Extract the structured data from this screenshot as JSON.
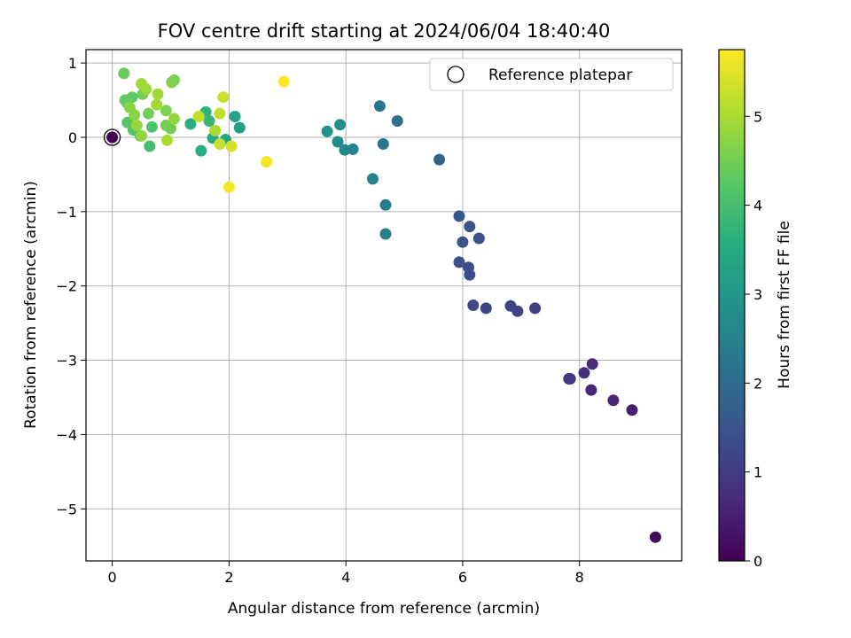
{
  "chart_data": {
    "type": "scatter",
    "title": "FOV centre drift starting at 2024/06/04 18:40:40",
    "xlabel": "Angular distance from reference (arcmin)",
    "ylabel": "Rotation from reference (arcmin)",
    "xlim": [
      -0.45,
      9.75
    ],
    "ylim": [
      -5.7,
      1.18
    ],
    "xticks": [
      0,
      2,
      4,
      6,
      8
    ],
    "yticks": [
      1,
      0,
      -1,
      -2,
      -3,
      -4,
      -5
    ],
    "grid": true,
    "legend": {
      "location": "upper right",
      "entries": [
        "Reference platepar"
      ]
    },
    "colorbar": {
      "label": "Hours from first FF file",
      "colormap": "viridis",
      "range": [
        0,
        5.75
      ],
      "ticks": [
        0,
        1,
        2,
        3,
        4,
        5
      ]
    },
    "reference": {
      "x": 0.0,
      "y": 0.0,
      "label": "Reference platepar"
    },
    "points": [
      {
        "x": 0.0,
        "y": 0.0,
        "h": 0.0
      },
      {
        "x": 9.3,
        "y": -5.38,
        "h": 0.15
      },
      {
        "x": 8.9,
        "y": -3.67,
        "h": 0.5
      },
      {
        "x": 8.58,
        "y": -3.54,
        "h": 0.6
      },
      {
        "x": 8.2,
        "y": -3.4,
        "h": 0.65
      },
      {
        "x": 8.22,
        "y": -3.05,
        "h": 0.7
      },
      {
        "x": 8.08,
        "y": -3.17,
        "h": 0.8
      },
      {
        "x": 7.82,
        "y": -3.25,
        "h": 0.85
      },
      {
        "x": 7.84,
        "y": -3.25,
        "h": 0.9
      },
      {
        "x": 7.24,
        "y": -2.3,
        "h": 1.1
      },
      {
        "x": 6.94,
        "y": -2.34,
        "h": 1.1
      },
      {
        "x": 6.82,
        "y": -2.27,
        "h": 1.15
      },
      {
        "x": 6.4,
        "y": -2.3,
        "h": 1.2
      },
      {
        "x": 6.18,
        "y": -2.26,
        "h": 1.25
      },
      {
        "x": 6.28,
        "y": -1.36,
        "h": 1.4
      },
      {
        "x": 6.12,
        "y": -1.85,
        "h": 1.35
      },
      {
        "x": 6.1,
        "y": -1.75,
        "h": 1.35
      },
      {
        "x": 5.94,
        "y": -1.68,
        "h": 1.4
      },
      {
        "x": 6.0,
        "y": -1.41,
        "h": 1.5
      },
      {
        "x": 6.12,
        "y": -1.2,
        "h": 1.5
      },
      {
        "x": 5.94,
        "y": -1.06,
        "h": 1.55
      },
      {
        "x": 5.6,
        "y": -0.3,
        "h": 1.8
      },
      {
        "x": 4.88,
        "y": 0.22,
        "h": 2.1
      },
      {
        "x": 4.58,
        "y": 0.42,
        "h": 2.2
      },
      {
        "x": 4.64,
        "y": -0.09,
        "h": 2.3
      },
      {
        "x": 4.68,
        "y": -0.91,
        "h": 2.4
      },
      {
        "x": 4.68,
        "y": -1.3,
        "h": 2.5
      },
      {
        "x": 4.46,
        "y": -0.56,
        "h": 2.55
      },
      {
        "x": 4.12,
        "y": -0.16,
        "h": 2.6
      },
      {
        "x": 3.98,
        "y": -0.17,
        "h": 2.7
      },
      {
        "x": 3.86,
        "y": -0.06,
        "h": 2.8
      },
      {
        "x": 3.9,
        "y": 0.17,
        "h": 2.8
      },
      {
        "x": 3.68,
        "y": 0.08,
        "h": 2.9
      },
      {
        "x": 2.18,
        "y": 0.13,
        "h": 3.2
      },
      {
        "x": 2.1,
        "y": 0.28,
        "h": 3.3
      },
      {
        "x": 1.94,
        "y": -0.03,
        "h": 3.4
      },
      {
        "x": 1.72,
        "y": -0.01,
        "h": 3.5
      },
      {
        "x": 1.52,
        "y": -0.18,
        "h": 3.6
      },
      {
        "x": 1.34,
        "y": 0.18,
        "h": 3.6
      },
      {
        "x": 1.6,
        "y": 0.34,
        "h": 3.7
      },
      {
        "x": 1.66,
        "y": 0.22,
        "h": 3.8
      },
      {
        "x": 0.64,
        "y": -0.12,
        "h": 4.0
      },
      {
        "x": 0.68,
        "y": 0.14,
        "h": 4.1
      },
      {
        "x": 0.48,
        "y": 0.02,
        "h": 4.1
      },
      {
        "x": 0.36,
        "y": 0.1,
        "h": 4.2
      },
      {
        "x": 0.26,
        "y": 0.2,
        "h": 4.2
      },
      {
        "x": 0.22,
        "y": 0.5,
        "h": 4.3
      },
      {
        "x": 0.34,
        "y": 0.54,
        "h": 4.3
      },
      {
        "x": 0.26,
        "y": 0.46,
        "h": 4.4
      },
      {
        "x": 0.2,
        "y": 0.86,
        "h": 4.4
      },
      {
        "x": 0.52,
        "y": 0.58,
        "h": 4.5
      },
      {
        "x": 0.62,
        "y": 0.32,
        "h": 4.5
      },
      {
        "x": 0.92,
        "y": 0.16,
        "h": 4.5
      },
      {
        "x": 1.0,
        "y": 0.12,
        "h": 4.5
      },
      {
        "x": 1.02,
        "y": 0.74,
        "h": 4.6
      },
      {
        "x": 1.06,
        "y": 0.77,
        "h": 4.6
      },
      {
        "x": 0.92,
        "y": 0.36,
        "h": 4.6
      },
      {
        "x": 0.38,
        "y": 0.3,
        "h": 4.7
      },
      {
        "x": 0.3,
        "y": 0.4,
        "h": 4.7
      },
      {
        "x": 0.42,
        "y": 0.16,
        "h": 4.8
      },
      {
        "x": 0.5,
        "y": 0.02,
        "h": 4.8
      },
      {
        "x": 1.06,
        "y": 0.25,
        "h": 4.8
      },
      {
        "x": 0.78,
        "y": 0.58,
        "h": 4.9
      },
      {
        "x": 0.76,
        "y": 0.44,
        "h": 4.9
      },
      {
        "x": 0.5,
        "y": 0.72,
        "h": 4.9
      },
      {
        "x": 0.58,
        "y": 0.65,
        "h": 4.9
      },
      {
        "x": 0.94,
        "y": -0.04,
        "h": 5.0
      },
      {
        "x": 1.76,
        "y": 0.09,
        "h": 5.0
      },
      {
        "x": 1.48,
        "y": 0.28,
        "h": 5.2
      },
      {
        "x": 1.84,
        "y": 0.32,
        "h": 5.2
      },
      {
        "x": 1.84,
        "y": -0.09,
        "h": 5.3
      },
      {
        "x": 2.04,
        "y": -0.12,
        "h": 5.4
      },
      {
        "x": 1.9,
        "y": 0.54,
        "h": 5.3
      },
      {
        "x": 2.0,
        "y": -0.67,
        "h": 5.7
      },
      {
        "x": 2.64,
        "y": -0.33,
        "h": 5.7
      },
      {
        "x": 2.94,
        "y": 0.75,
        "h": 5.75
      }
    ]
  }
}
